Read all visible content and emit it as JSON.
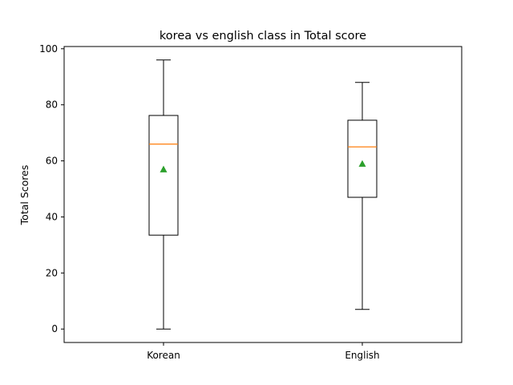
{
  "chart_data": {
    "type": "box",
    "title": "korea vs english class in Total score",
    "xlabel": "",
    "ylabel": "Total Scores",
    "ylim": [
      -4.8,
      100.8
    ],
    "yticks": [
      0,
      20,
      40,
      60,
      80,
      100
    ],
    "categories": [
      "Korean",
      "English"
    ],
    "boxes": [
      {
        "name": "Korean",
        "whisker_low": 0,
        "q1": 33.5,
        "median": 66,
        "q3": 76.2,
        "whisker_high": 96,
        "mean": 57
      },
      {
        "name": "English",
        "whisker_low": 7,
        "q1": 47,
        "median": 65,
        "q3": 74.5,
        "whisker_high": 88,
        "mean": 59
      }
    ],
    "grid": false,
    "colors": {
      "box": "#000000",
      "median": "#ff7f0e",
      "mean": "#2ca02c"
    }
  }
}
